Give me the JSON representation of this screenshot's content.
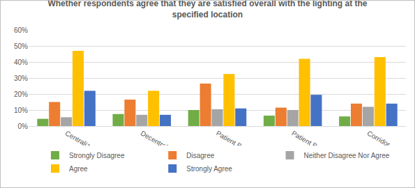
{
  "chart_data": {
    "type": "bar",
    "title": "Whether respondents agree that they are satisfied overall with the lighting at the\nspecified location",
    "categories": [
      "Centralized Nurse Station",
      "Decentralized Nurse Station",
      "Patient Bedside",
      "Patient Bathroom",
      "Corridor"
    ],
    "series": [
      {
        "name": "Strongly Disagree",
        "color": "#70ad47",
        "values": [
          4.5,
          7.5,
          10,
          6.5,
          6
        ]
      },
      {
        "name": "Disagree",
        "color": "#ed7d31",
        "values": [
          15,
          16.5,
          26.5,
          11.5,
          14
        ]
      },
      {
        "name": "Neither Disagree Nor Agree",
        "color": "#a5a5a5",
        "values": [
          5.5,
          7,
          10.5,
          10,
          12
        ]
      },
      {
        "name": "Agree",
        "color": "#ffc000",
        "values": [
          47,
          22,
          32.5,
          42,
          43
        ]
      },
      {
        "name": "Strongly Agree",
        "color": "#4472c4",
        "values": [
          22,
          7,
          11,
          19.5,
          14
        ]
      }
    ],
    "ylim": [
      0,
      60
    ],
    "yticks": [
      {
        "value": 0,
        "label": "0%"
      },
      {
        "value": 10,
        "label": "10%"
      },
      {
        "value": 20,
        "label": "20%"
      },
      {
        "value": 30,
        "label": "30%"
      },
      {
        "value": 40,
        "label": "40%"
      },
      {
        "value": 50,
        "label": "50%"
      },
      {
        "value": 60,
        "label": "60%"
      }
    ],
    "grid": true,
    "legend": "bottom"
  }
}
